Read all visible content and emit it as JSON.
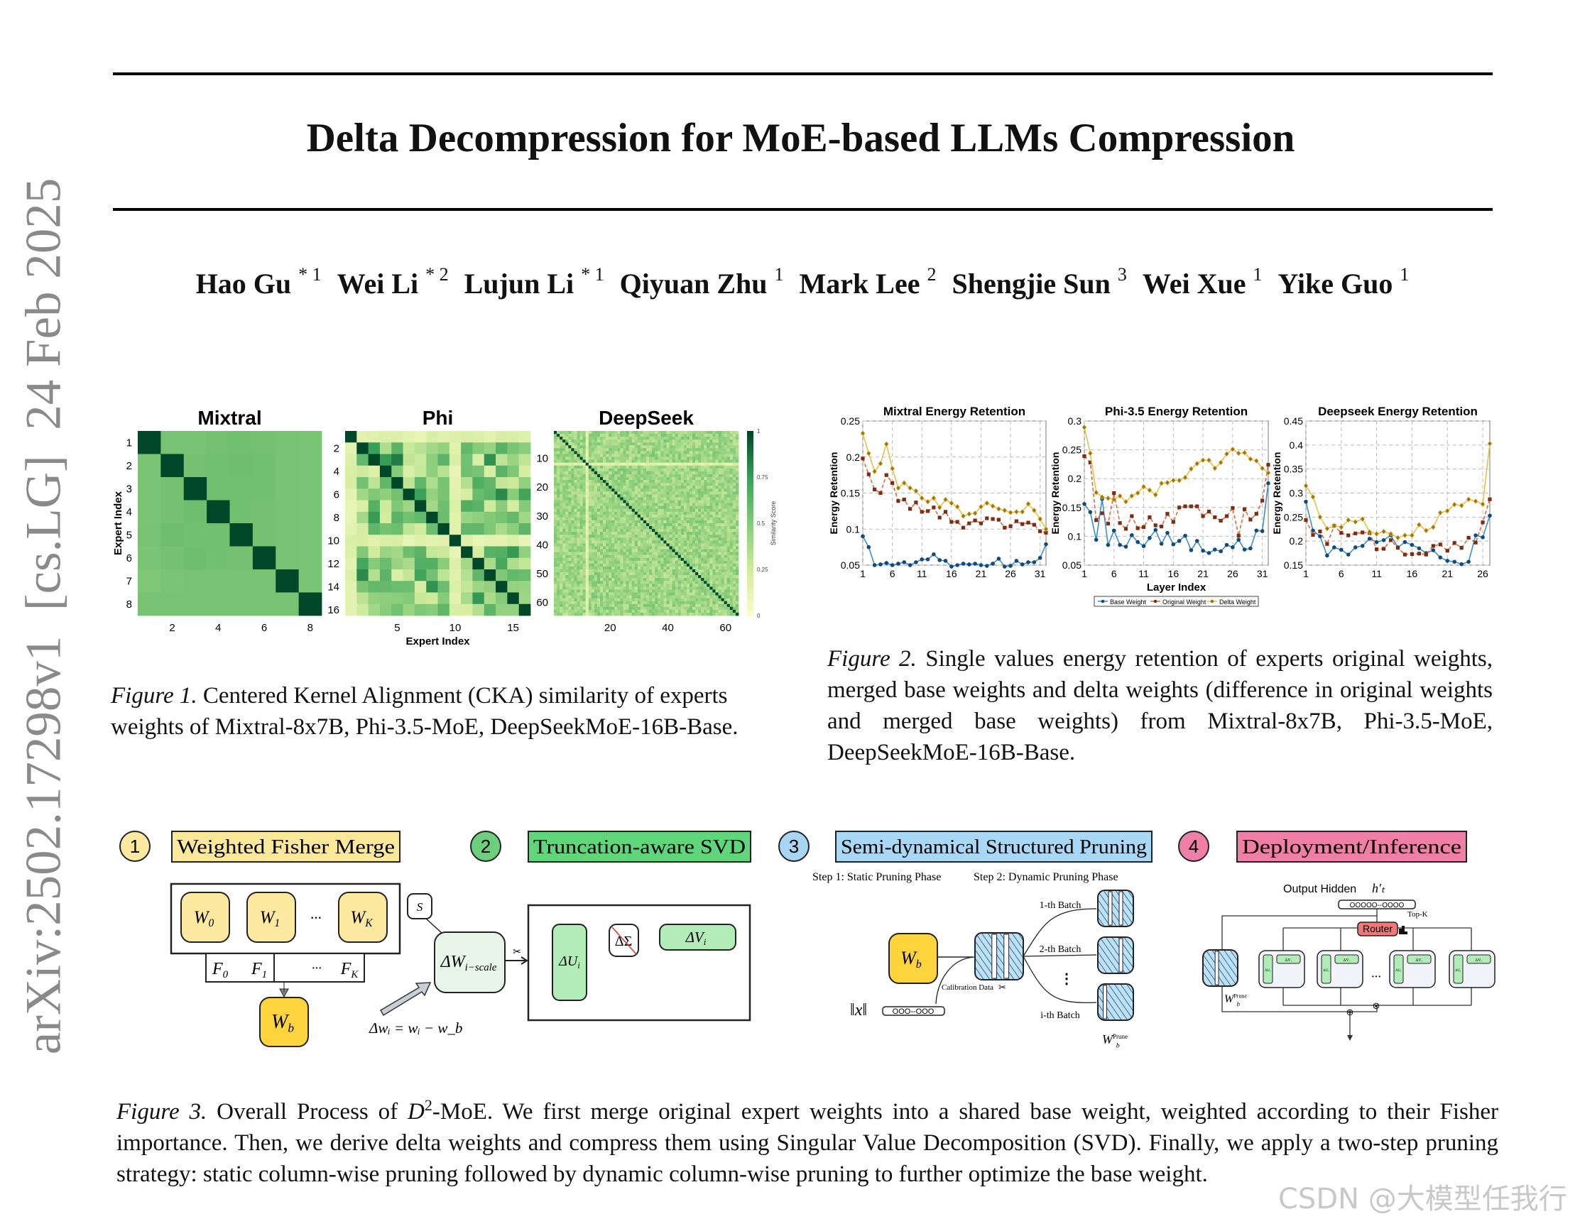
{
  "sidebar_id": "arXiv:2502.17298v1  [cs.LG]  24 Feb 2025",
  "title": "Delta Decompression for MoE-based LLMs Compression",
  "authors": [
    {
      "name": "Hao Gu",
      "sup": "* 1"
    },
    {
      "name": "Wei Li",
      "sup": "* 2"
    },
    {
      "name": "Lujun Li",
      "sup": "* 1"
    },
    {
      "name": "Qiyuan Zhu",
      "sup": "1"
    },
    {
      "name": "Mark Lee",
      "sup": "2"
    },
    {
      "name": "Shengjie Sun",
      "sup": "3"
    },
    {
      "name": "Wei Xue",
      "sup": "1"
    },
    {
      "name": "Yike Guo",
      "sup": "1"
    }
  ],
  "figure1": {
    "label": "Figure 1.",
    "caption": " Centered Kernel Alignment (CKA) similarity of experts weights of Mixtral-8x7B, Phi-3.5-MoE, DeepSeekMoE-16B-Base."
  },
  "figure2": {
    "label": "Figure 2.",
    "caption": " Single values energy retention of experts original weights, merged base weights and delta weights (difference in original weights and merged base weights) from Mixtral-8x7B, Phi-3.5-MoE, DeepSeekMoE-16B-Base."
  },
  "figure3": {
    "label": "Figure 3.",
    "caption_pre": " Overall Process of ",
    "caption_math": "D",
    "caption_sup": "2",
    "caption_post": "-MoE. We first merge original expert weights into a shared base weight, weighted according to their Fisher importance. Then, we derive delta weights and compress them using Singular Value Decomposition (SVD). Finally, we apply a two-step pruning strategy: static column-wise pruning followed by dynamic column-wise pruning to further optimize the base weight.",
    "steps": [
      {
        "num": "1",
        "title": "Weighted Fisher Merge",
        "color": "#fbe89a",
        "circle": "#fde9a0"
      },
      {
        "num": "2",
        "title": "Truncation-aware SVD",
        "color": "#5fd67a",
        "circle": "#6ccf7b"
      },
      {
        "num": "3",
        "title": "Semi-dynamical Structured Pruning",
        "color": "#a9d8f7",
        "circle": "#a9d5f5"
      },
      {
        "num": "4",
        "title": "Deployment/Inference",
        "color": "#ef7fa7",
        "circle": "#ef7fa7"
      }
    ],
    "merge": {
      "experts": [
        {
          "main": "W",
          "sub": "0"
        },
        {
          "main": "W",
          "sub": "1"
        },
        {
          "main": "W",
          "sub": "K"
        }
      ],
      "fishers": [
        {
          "main": "F",
          "sub": "0"
        },
        {
          "main": "F",
          "sub": "1"
        },
        {
          "main": "F",
          "sub": "K"
        }
      ],
      "ellipsis": "···",
      "base": {
        "main": "W",
        "sub": "b"
      },
      "scale": "S",
      "delta": {
        "main": "ΔW",
        "sub": "i−scale"
      },
      "delta_eq": "Δwᵢ = wᵢ − w_b"
    },
    "svd": {
      "u": {
        "main": "ΔU",
        "sub": "i"
      },
      "sigma": "ΔΣ",
      "v": {
        "main": "ΔV",
        "sub": "i"
      }
    },
    "pruning": {
      "step1": "Step 1: Static Pruning Phase",
      "step2": "Step 2: Dynamic Pruning Phase",
      "base": {
        "main": "W",
        "sub": "b"
      },
      "batches": [
        "1-th Batch",
        "2-th Batch",
        "i-th Batch"
      ],
      "vdots": "⋮",
      "calibration": "Calibration Data",
      "norm": "‖x‖",
      "pill": "OOO--OOO",
      "pruned": {
        "main": "W",
        "sub": "b",
        "sup": "Prune"
      }
    },
    "deploy": {
      "output_hidden": "Output Hidden",
      "h": "h′ₜ",
      "pill": "OOOOO--OOOO",
      "router": "Router",
      "topk": "Top-K",
      "expert_u": "ΔUᵢ",
      "expert_v": "ΔVᵢ",
      "ellipsis": "···",
      "pruned": {
        "main": "W",
        "sub": "b",
        "sup": "Prune"
      },
      "otimes": "⊗",
      "oplus": "⊕"
    }
  },
  "watermark": "CSDN @大模型任我行",
  "chart_data": [
    {
      "type": "heatmap",
      "title": "Mixtral",
      "xlabel": "Expert Index",
      "ylabel": "Expert Index",
      "size": 8,
      "xticks": [
        2,
        4,
        6,
        8
      ],
      "yticks": [
        1,
        2,
        3,
        4,
        5,
        6,
        7,
        8
      ],
      "matrix": [
        [
          1,
          0.55,
          0.55,
          0.56,
          0.57,
          0.56,
          0.55,
          0.54
        ],
        [
          0.54,
          1,
          0.56,
          0.57,
          0.58,
          0.57,
          0.55,
          0.54
        ],
        [
          0.54,
          0.56,
          1,
          0.57,
          0.57,
          0.57,
          0.55,
          0.54
        ],
        [
          0.54,
          0.56,
          0.58,
          1,
          0.57,
          0.56,
          0.55,
          0.54
        ],
        [
          0.55,
          0.58,
          0.57,
          0.57,
          1,
          0.56,
          0.55,
          0.54
        ],
        [
          0.54,
          0.56,
          0.58,
          0.57,
          0.56,
          1,
          0.55,
          0.54
        ],
        [
          0.53,
          0.54,
          0.55,
          0.55,
          0.55,
          0.55,
          1,
          0.54
        ],
        [
          0.55,
          0.55,
          0.55,
          0.55,
          0.55,
          0.55,
          0.55,
          1
        ]
      ]
    },
    {
      "type": "heatmap",
      "title": "Phi",
      "xlabel": "Expert Index",
      "size": 16,
      "xticks": [
        5,
        10,
        15
      ],
      "yticks": [
        2,
        4,
        6,
        8,
        10,
        12,
        14,
        16
      ],
      "diagonal": 1,
      "offdiag_range": [
        0.2,
        0.8
      ],
      "low_similarity_experts": [
        1,
        10
      ]
    },
    {
      "type": "heatmap",
      "title": "DeepSeek",
      "size": 64,
      "xticks": [
        20,
        40,
        60
      ],
      "yticks": [
        10,
        20,
        30,
        40,
        50,
        60
      ],
      "diagonal": 1,
      "offdiag_range": [
        0.3,
        0.6
      ],
      "low_similarity_experts": [
        12
      ],
      "colorbar": {
        "label": "Similarity Score",
        "ticks": [
          "0",
          "0.25",
          "0.5",
          "0.75",
          "1"
        ],
        "range": [
          0,
          1
        ]
      }
    },
    {
      "type": "line",
      "title": "Mixtral Energy Retention",
      "ylabel": "Energy Retention",
      "xticks": [
        1,
        6,
        11,
        16,
        21,
        26,
        31
      ],
      "xlim": [
        1,
        32
      ],
      "ylim": [
        0.05,
        0.25
      ],
      "yticks": [
        "0.05",
        "0.1",
        "0.15",
        "0.2",
        "0.25"
      ],
      "grid": true,
      "series": [
        {
          "name": "Base Weight",
          "values": [
            0.09,
            0.075,
            0.05,
            0.051,
            0.053,
            0.05,
            0.052,
            0.054,
            0.05,
            0.054,
            0.058,
            0.058,
            0.065,
            0.057,
            0.056,
            0.048,
            0.05,
            0.052,
            0.051,
            0.052,
            0.05,
            0.049,
            0.052,
            0.059,
            0.048,
            0.049,
            0.056,
            0.051,
            0.054,
            0.054,
            0.06,
            0.079
          ]
        },
        {
          "name": "Original Weight",
          "values": [
            0.198,
            0.176,
            0.155,
            0.15,
            0.175,
            0.164,
            0.139,
            0.141,
            0.128,
            0.137,
            0.124,
            0.125,
            0.13,
            0.116,
            0.124,
            0.11,
            0.11,
            0.102,
            0.108,
            0.112,
            0.108,
            0.115,
            0.114,
            0.113,
            0.102,
            0.104,
            0.111,
            0.107,
            0.109,
            0.106,
            0.097,
            0.095
          ]
        },
        {
          "name": "Delta Weight",
          "values": [
            0.233,
            0.205,
            0.18,
            0.191,
            0.218,
            0.184,
            0.157,
            0.164,
            0.157,
            0.153,
            0.143,
            0.138,
            0.143,
            0.13,
            0.141,
            0.136,
            0.131,
            0.118,
            0.121,
            0.122,
            0.131,
            0.136,
            0.132,
            0.128,
            0.126,
            0.123,
            0.124,
            0.124,
            0.135,
            0.126,
            0.114,
            0.1
          ]
        }
      ]
    },
    {
      "type": "line",
      "title": "Phi-3.5 Energy Retention",
      "xlabel": "Layer Index",
      "ylabel": "Energy Retention",
      "xticks": [
        1,
        6,
        11,
        16,
        21,
        26,
        31
      ],
      "xlim": [
        1,
        32
      ],
      "ylim": [
        0.05,
        0.3
      ],
      "yticks": [
        "0.05",
        "0.1",
        "0.15",
        "0.2",
        "0.25",
        "0.3"
      ],
      "grid": true,
      "legend": {
        "position": "bottom",
        "entries": [
          "Base Weight",
          "Original Weight",
          "Delta Weight"
        ]
      },
      "series": [
        {
          "name": "Base Weight",
          "values": [
            0.156,
            0.142,
            0.094,
            0.165,
            0.085,
            0.11,
            0.085,
            0.082,
            0.102,
            0.09,
            0.083,
            0.097,
            0.111,
            0.087,
            0.106,
            0.086,
            0.092,
            0.101,
            0.076,
            0.092,
            0.075,
            0.071,
            0.077,
            0.074,
            0.085,
            0.081,
            0.094,
            0.077,
            0.079,
            0.11,
            0.109,
            0.192
          ]
        },
        {
          "name": "Original Weight",
          "values": [
            0.239,
            0.228,
            0.128,
            0.14,
            0.122,
            0.175,
            0.123,
            0.113,
            0.135,
            0.114,
            0.116,
            0.133,
            0.119,
            0.117,
            0.139,
            0.125,
            0.15,
            0.152,
            0.152,
            0.152,
            0.135,
            0.143,
            0.133,
            0.127,
            0.135,
            0.149,
            0.101,
            0.147,
            0.129,
            0.139,
            0.162,
            0.224
          ]
        },
        {
          "name": "Delta Weight",
          "values": [
            0.289,
            0.244,
            0.176,
            0.168,
            0.166,
            0.164,
            0.17,
            0.16,
            0.17,
            0.175,
            0.186,
            0.18,
            0.172,
            0.192,
            0.193,
            0.197,
            0.197,
            0.202,
            0.217,
            0.226,
            0.232,
            0.232,
            0.218,
            0.228,
            0.243,
            0.251,
            0.244,
            0.245,
            0.234,
            0.231,
            0.218,
            0.21
          ]
        }
      ]
    },
    {
      "type": "line",
      "title": "Deepseek Energy Retention",
      "ylabel": "Energy Retention",
      "xticks": [
        1,
        6,
        11,
        16,
        21,
        26
      ],
      "xlim": [
        1,
        27
      ],
      "ylim": [
        0.15,
        0.45
      ],
      "yticks": [
        "0.15",
        "0.2",
        "0.25",
        "0.3",
        "0.35",
        "0.4",
        "0.45"
      ],
      "grid": true,
      "series": [
        {
          "name": "Base Weight",
          "values": [
            0.282,
            0.222,
            0.21,
            0.17,
            0.187,
            0.182,
            0.172,
            0.187,
            0.19,
            0.205,
            0.198,
            0.202,
            0.212,
            0.187,
            0.198,
            0.192,
            0.185,
            0.175,
            0.181,
            0.166,
            0.159,
            0.157,
            0.152,
            0.157,
            0.212,
            0.208,
            0.253
          ]
        },
        {
          "name": "Original Weight",
          "values": [
            0.244,
            0.213,
            0.22,
            0.194,
            0.232,
            0.217,
            0.212,
            0.216,
            0.218,
            0.217,
            0.183,
            0.184,
            0.202,
            0.186,
            0.172,
            0.173,
            0.174,
            0.172,
            0.19,
            0.193,
            0.18,
            0.196,
            0.186,
            0.207,
            0.197,
            0.239,
            0.287
          ]
        },
        {
          "name": "Delta Weight",
          "values": [
            0.315,
            0.292,
            0.25,
            0.226,
            0.232,
            0.229,
            0.244,
            0.24,
            0.246,
            0.219,
            0.215,
            0.22,
            0.215,
            0.207,
            0.212,
            0.212,
            0.234,
            0.222,
            0.229,
            0.259,
            0.263,
            0.276,
            0.274,
            0.287,
            0.283,
            0.277,
            0.403
          ]
        }
      ]
    }
  ],
  "series_colors": {
    "Base Weight": "#3d8fc8",
    "Original Weight": "#e2673d",
    "Delta Weight": "#e8c04a"
  },
  "marker_colors": {
    "Base Weight": "#144a78",
    "Original Weight": "#7a2e14",
    "Delta Weight": "#9c7410"
  }
}
